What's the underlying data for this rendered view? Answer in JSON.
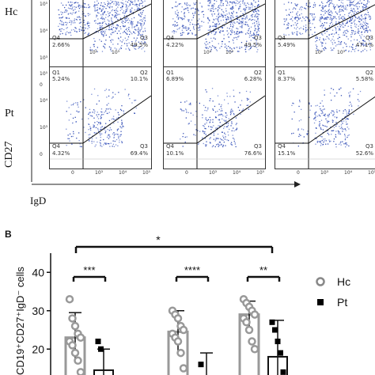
{
  "panel_a": {
    "row_labels": [
      "Hc",
      "Pt"
    ],
    "y_axis_label": "CD27",
    "x_axis_label": "IgD",
    "x_ticks": [
      "0",
      "10³",
      "10⁴",
      "10⁵"
    ],
    "y_ticks": [
      "10⁵",
      "10⁴",
      "10³",
      "0"
    ],
    "panels": [
      {
        "row": 0,
        "col": 0,
        "q1": "",
        "q2": "",
        "q3": "49.5%",
        "q4": "2.66%",
        "ticks": [
          "10²",
          "10³"
        ]
      },
      {
        "row": 0,
        "col": 1,
        "q1": "",
        "q2": "",
        "q3": "49.5%",
        "q4": "4.22%",
        "ticks": [
          "10²",
          "10³"
        ]
      },
      {
        "row": 0,
        "col": 2,
        "q1": "",
        "q2": "",
        "q3": "47.1%",
        "q4": "5.49%",
        "ticks": [
          "10²",
          "10³"
        ]
      },
      {
        "row": 1,
        "col": 0,
        "q1": "5.24%",
        "q2": "10.1%",
        "q3": "69.4%",
        "q4": "4.32%"
      },
      {
        "row": 1,
        "col": 1,
        "q1": "6.89%",
        "q2": "6.28%",
        "q3": "76.6%",
        "q4": "10.1%"
      },
      {
        "row": 1,
        "col": 2,
        "q1": "8.37%",
        "q2": "5.58%",
        "q3": "52.6%",
        "q4": "15.1%"
      }
    ]
  },
  "panel_b": {
    "label": "B",
    "significance": {
      "overall": "*",
      "pairs": [
        "***",
        "****",
        "**"
      ]
    },
    "legend": [
      {
        "name": "Hc",
        "marker": "open-circle"
      },
      {
        "name": "Pt",
        "marker": "filled-square"
      }
    ]
  },
  "chart_data": {
    "type": "bar",
    "ylabel": "CD19⁺CD27⁺IgD⁻ cells",
    "y_ticks": [
      "40",
      "30",
      "20",
      "10"
    ],
    "ylim": [
      5,
      45
    ],
    "groups": 3,
    "series": [
      {
        "name": "Hc",
        "marker": "open-circle",
        "bar_color": "#ffffff",
        "values": [
          23,
          24.5,
          29
        ],
        "error": [
          6.5,
          5.5,
          3.5
        ],
        "points": [
          [
            33,
            28,
            26,
            24,
            23,
            22,
            21,
            19,
            17,
            14,
            10
          ],
          [
            30,
            29,
            28,
            26,
            25,
            24,
            23,
            22,
            19,
            15,
            12
          ],
          [
            33,
            32,
            31,
            30,
            29,
            28,
            27,
            25,
            22,
            20
          ]
        ]
      },
      {
        "name": "Pt",
        "marker": "filled-square",
        "bar_color": "#ffffff",
        "values": [
          14.5,
          11,
          18
        ],
        "error": [
          5.5,
          8,
          9.5
        ],
        "points": [
          [
            22,
            20
          ],
          [
            16,
            12,
            10
          ],
          [
            27,
            25,
            22,
            19,
            14
          ]
        ]
      }
    ]
  }
}
